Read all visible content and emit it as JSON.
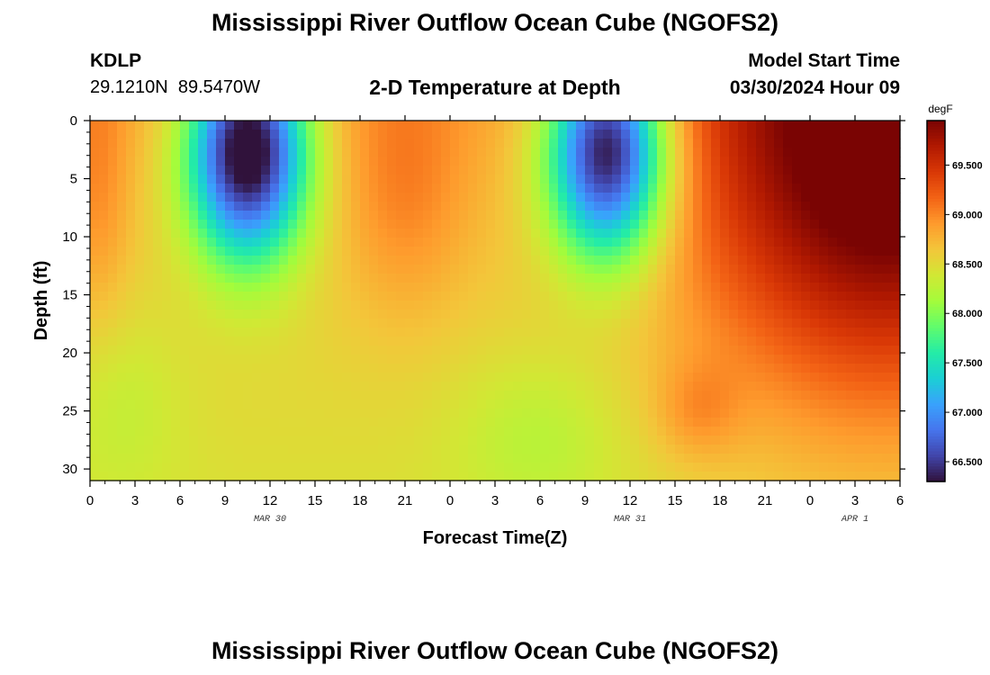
{
  "page_title": "Mississippi River Outflow Ocean Cube (NGOFS2)",
  "page_title_repeat": "Mississippi River Outflow Ocean Cube (NGOFS2)",
  "station": {
    "id": "KDLP",
    "lat": "29.1210N",
    "lon": "89.5470W"
  },
  "model": {
    "label": "Model Start Time",
    "time": "03/30/2024 Hour 09"
  },
  "chart_data": {
    "type": "heatmap",
    "title": "2-D Temperature at Depth",
    "xlabel": "Forecast Time(Z)",
    "ylabel": "Depth (ft)",
    "x_ticks": [
      "0",
      "3",
      "6",
      "9",
      "12",
      "15",
      "18",
      "21",
      "0",
      "3",
      "6",
      "9",
      "12",
      "15",
      "18",
      "21",
      "0",
      "3",
      "6"
    ],
    "date_labels": [
      {
        "label": "MAR 30",
        "at_hour": 12
      },
      {
        "label": "MAR 31",
        "at_hour": 36
      },
      {
        "label": "APR 1",
        "at_hour": 51
      }
    ],
    "x_range_hours": [
      0,
      54
    ],
    "y_ticks": [
      0,
      5,
      10,
      15,
      20,
      25,
      30
    ],
    "y_range_ft": [
      0,
      31
    ],
    "colorbar": {
      "unit": "degF",
      "range": [
        66.3,
        69.95
      ],
      "ticks": [
        "66.500",
        "67.000",
        "67.500",
        "68.000",
        "68.500",
        "69.000",
        "69.500"
      ],
      "tick_values": [
        66.5,
        67.0,
        67.5,
        68.0,
        68.5,
        69.0,
        69.5
      ],
      "colors": [
        "#30123b",
        "#4145ab",
        "#4675ed",
        "#39a2fc",
        "#1bcfd4",
        "#24eca6",
        "#61fc6c",
        "#a4fc3b",
        "#d1e834",
        "#f3c63a",
        "#fe9b2d",
        "#f36315",
        "#d93806",
        "#b11901",
        "#7a0403"
      ]
    },
    "blobs": [
      {
        "t": 10.5,
        "d": 2.5,
        "st": 2.8,
        "sd": 6.5,
        "amp": -2.65,
        "note": "cold pool MAR 30"
      },
      {
        "t": 34.5,
        "d": 2.5,
        "st": 2.8,
        "sd": 6.5,
        "amp": -2.55,
        "note": "cold pool MAR 31"
      },
      {
        "t": 21.0,
        "d": 6.0,
        "st": 3.0,
        "sd": 8.0,
        "amp": 0.35,
        "note": "warm plume"
      },
      {
        "t": 53.0,
        "d": 3.0,
        "st": 9.0,
        "sd": 15.0,
        "amp": 1.55,
        "note": "warm front APR 1"
      },
      {
        "t": 0.5,
        "d": 6.0,
        "st": 1.5,
        "sd": 9.0,
        "amp": 0.3,
        "note": "warm start"
      },
      {
        "t": 40.5,
        "d": 25.0,
        "st": 2.0,
        "sd": 3.0,
        "amp": 0.3,
        "note": "warm spot"
      },
      {
        "t": 30.0,
        "d": 27.0,
        "st": 4.0,
        "sd": 5.0,
        "amp": -0.25,
        "note": "green bottom"
      },
      {
        "t": 2.0,
        "d": 24.0,
        "st": 3.0,
        "sd": 6.0,
        "amp": -0.2,
        "note": "green bottom left"
      }
    ],
    "background": {
      "base": 68.6,
      "surface_bonus": 0.2,
      "bottom_drop": 0.15
    }
  }
}
